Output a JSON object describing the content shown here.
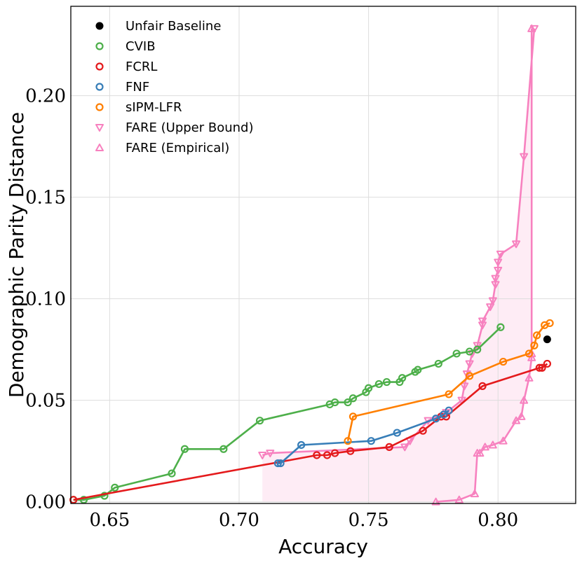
{
  "chart_data": {
    "type": "line",
    "title": "",
    "xlabel": "Accuracy",
    "ylabel": "Demographic Parity Distance",
    "xlim": [
      0.635,
      0.83
    ],
    "ylim": [
      -0.0008,
      0.244
    ],
    "grid": true,
    "legend_position": "top-left",
    "xticks": [
      0.65,
      0.7,
      0.75,
      0.8
    ],
    "xtick_labels": [
      "0.65",
      "0.70",
      "0.75",
      "0.80"
    ],
    "yticks": [
      0.0,
      0.05,
      0.1,
      0.15,
      0.2
    ],
    "ytick_labels": [
      "0.00",
      "0.05",
      "0.10",
      "0.15",
      "0.20"
    ],
    "series": [
      {
        "name": "Unfair Baseline",
        "color": "#000000",
        "marker": "filled-circle",
        "line": false,
        "points": [
          [
            0.819,
            0.08
          ]
        ]
      },
      {
        "name": "CVIB",
        "color": "#4daf4a",
        "marker": "circle",
        "line": true,
        "points": [
          [
            0.636,
            0.001
          ],
          [
            0.64,
            0.001
          ],
          [
            0.648,
            0.003
          ],
          [
            0.652,
            0.007
          ],
          [
            0.674,
            0.014
          ],
          [
            0.679,
            0.026
          ],
          [
            0.694,
            0.026
          ],
          [
            0.708,
            0.04
          ],
          [
            0.735,
            0.048
          ],
          [
            0.737,
            0.049
          ],
          [
            0.742,
            0.049
          ],
          [
            0.744,
            0.051
          ],
          [
            0.749,
            0.054
          ],
          [
            0.75,
            0.056
          ],
          [
            0.754,
            0.058
          ],
          [
            0.757,
            0.059
          ],
          [
            0.762,
            0.059
          ],
          [
            0.763,
            0.061
          ],
          [
            0.768,
            0.064
          ],
          [
            0.769,
            0.065
          ],
          [
            0.777,
            0.068
          ],
          [
            0.784,
            0.073
          ],
          [
            0.789,
            0.074
          ],
          [
            0.792,
            0.075
          ],
          [
            0.801,
            0.086
          ]
        ]
      },
      {
        "name": "FCRL",
        "color": "#e41a1c",
        "marker": "circle",
        "line": true,
        "points": [
          [
            0.636,
            0.001
          ],
          [
            0.73,
            0.023
          ],
          [
            0.734,
            0.023
          ],
          [
            0.737,
            0.024
          ],
          [
            0.743,
            0.025
          ],
          [
            0.758,
            0.027
          ],
          [
            0.771,
            0.035
          ],
          [
            0.778,
            0.042
          ],
          [
            0.78,
            0.042
          ],
          [
            0.794,
            0.057
          ],
          [
            0.816,
            0.066
          ],
          [
            0.817,
            0.066
          ],
          [
            0.819,
            0.068
          ]
        ]
      },
      {
        "name": "FNF",
        "color": "#377eb8",
        "marker": "circle",
        "line": true,
        "points": [
          [
            0.715,
            0.019
          ],
          [
            0.716,
            0.019
          ],
          [
            0.724,
            0.028
          ],
          [
            0.751,
            0.03
          ],
          [
            0.761,
            0.034
          ],
          [
            0.776,
            0.041
          ],
          [
            0.779,
            0.043
          ],
          [
            0.781,
            0.045
          ]
        ]
      },
      {
        "name": "sIPM-LFR",
        "color": "#ff7f00",
        "marker": "circle",
        "line": true,
        "points": [
          [
            0.742,
            0.03
          ],
          [
            0.744,
            0.042
          ],
          [
            0.781,
            0.053
          ],
          [
            0.789,
            0.062
          ],
          [
            0.802,
            0.069
          ],
          [
            0.812,
            0.073
          ],
          [
            0.814,
            0.077
          ],
          [
            0.815,
            0.082
          ],
          [
            0.818,
            0.087
          ],
          [
            0.82,
            0.088
          ]
        ]
      },
      {
        "name": "FARE (Upper Bound)",
        "color": "#f781bf",
        "marker": "triangle-down",
        "line": true,
        "points": [
          [
            0.709,
            0.023
          ],
          [
            0.712,
            0.024
          ],
          [
            0.764,
            0.027
          ],
          [
            0.766,
            0.03
          ],
          [
            0.773,
            0.04
          ],
          [
            0.78,
            0.044
          ],
          [
            0.786,
            0.05
          ],
          [
            0.787,
            0.057
          ],
          [
            0.788,
            0.063
          ],
          [
            0.789,
            0.068
          ],
          [
            0.79,
            0.073
          ],
          [
            0.792,
            0.077
          ],
          [
            0.794,
            0.087
          ],
          [
            0.794,
            0.089
          ],
          [
            0.797,
            0.096
          ],
          [
            0.798,
            0.099
          ],
          [
            0.799,
            0.107
          ],
          [
            0.799,
            0.11
          ],
          [
            0.8,
            0.114
          ],
          [
            0.8,
            0.118
          ],
          [
            0.801,
            0.122
          ],
          [
            0.807,
            0.127
          ],
          [
            0.81,
            0.17
          ],
          [
            0.814,
            0.233
          ]
        ]
      },
      {
        "name": "FARE (Empirical)",
        "color": "#f781bf",
        "marker": "triangle-up",
        "line": true,
        "points": [
          [
            0.776,
            0.0
          ],
          [
            0.785,
            0.001
          ],
          [
            0.791,
            0.004
          ],
          [
            0.792,
            0.024
          ],
          [
            0.793,
            0.024
          ],
          [
            0.795,
            0.027
          ],
          [
            0.798,
            0.028
          ],
          [
            0.802,
            0.03
          ],
          [
            0.807,
            0.04
          ],
          [
            0.809,
            0.042
          ],
          [
            0.81,
            0.05
          ],
          [
            0.812,
            0.061
          ],
          [
            0.813,
            0.071
          ],
          [
            0.813,
            0.073
          ],
          [
            0.813,
            0.233
          ]
        ]
      }
    ]
  }
}
